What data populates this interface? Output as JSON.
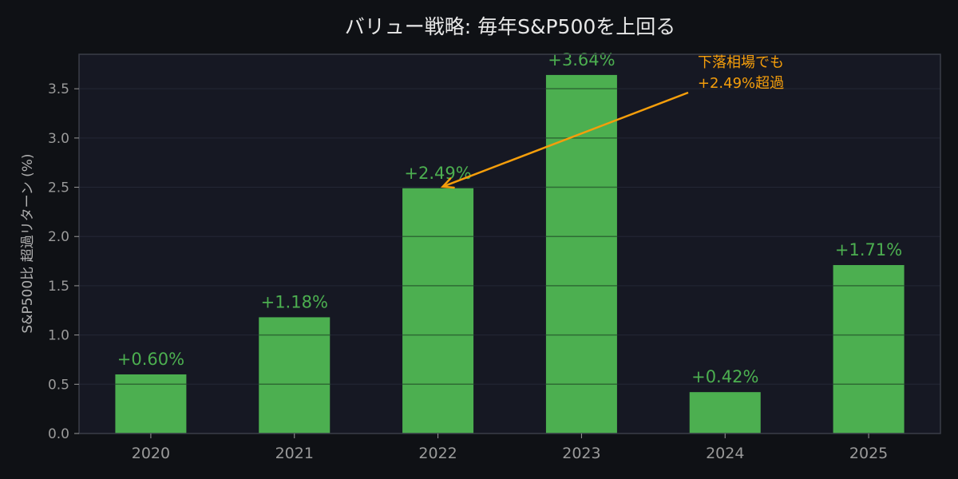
{
  "chart_data": {
    "type": "bar",
    "title": "バリュー戦略: 毎年S&P500を上回る",
    "xlabel": "",
    "ylabel": "S&P500比 超過リターン (%)",
    "categories": [
      "2020",
      "2021",
      "2022",
      "2023",
      "2024",
      "2025"
    ],
    "series": [
      {
        "values": [
          0.6,
          1.18,
          2.49,
          3.64,
          0.42,
          1.71
        ],
        "labels": [
          "+0.60%",
          "+1.18%",
          "+2.49%",
          "+3.64%",
          "+0.42%",
          "+1.71%"
        ]
      }
    ],
    "ylim": [
      0,
      3.85
    ],
    "yticks": [
      0.0,
      0.5,
      1.0,
      1.5,
      2.0,
      2.5,
      3.0,
      3.5
    ],
    "ytick_labels": [
      "0.0",
      "0.5",
      "1.0",
      "1.5",
      "2.0",
      "2.5",
      "3.0",
      "3.5"
    ],
    "grid": true,
    "annotation": {
      "text_lines": [
        "下落相場でも",
        "+2.49%超過"
      ],
      "target_category": "2022",
      "target_value": 2.49
    },
    "colors": {
      "background": "#0f1115",
      "plot_background": "#161823",
      "bar": "#4caf50",
      "bar_label": "#4caf50",
      "annotation": "#f59e0b",
      "title": "#e8e8e8",
      "tick_label": "#9a9a9a",
      "axis": "#3a3d48",
      "grid": "#242736"
    }
  }
}
